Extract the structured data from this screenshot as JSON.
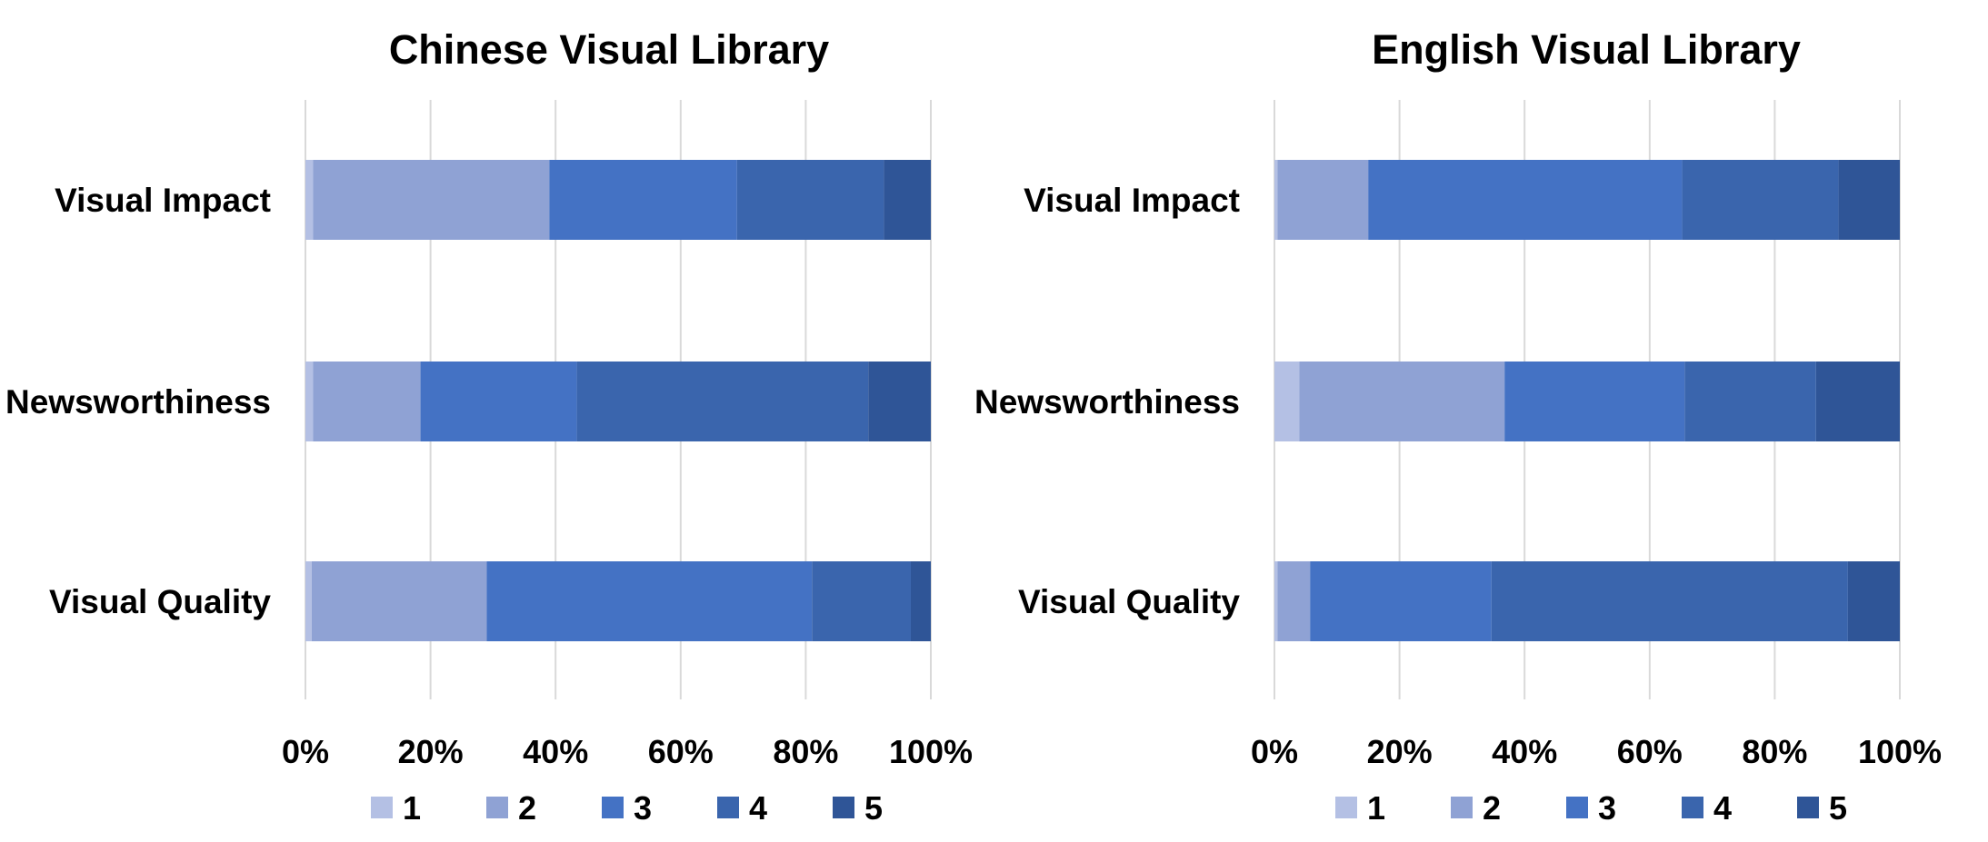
{
  "chart_data": [
    {
      "type": "bar",
      "orientation": "horizontal",
      "stacked": "percent",
      "title": "Chinese Visual Library",
      "categories": [
        "Visual Impact",
        "Newsworthiness",
        "Visual Quality"
      ],
      "x_ticks": [
        "0%",
        "20%",
        "40%",
        "60%",
        "80%",
        "100%"
      ],
      "xlim": [
        0,
        100
      ],
      "grid": "vertical",
      "legend_position": "bottom",
      "series": [
        {
          "name": "1",
          "color": "#b4c0e4",
          "values": [
            1.2,
            1.2,
            1.0
          ]
        },
        {
          "name": "2",
          "color": "#8fa2d4",
          "values": [
            37.8,
            17.2,
            28.0
          ]
        },
        {
          "name": "3",
          "color": "#4472c4",
          "values": [
            30.0,
            25.0,
            52.0
          ]
        },
        {
          "name": "4",
          "color": "#3a65ad",
          "values": [
            23.5,
            46.6,
            15.8
          ]
        },
        {
          "name": "5",
          "color": "#2f5597",
          "values": [
            7.5,
            10.0,
            3.2
          ]
        }
      ]
    },
    {
      "type": "bar",
      "orientation": "horizontal",
      "stacked": "percent",
      "title": "English Visual Library",
      "categories": [
        "Visual Impact",
        "Newsworthiness",
        "Visual Quality"
      ],
      "x_ticks": [
        "0%",
        "20%",
        "40%",
        "60%",
        "80%",
        "100%"
      ],
      "xlim": [
        0,
        100
      ],
      "grid": "vertical",
      "legend_position": "bottom",
      "series": [
        {
          "name": "1",
          "color": "#b4c0e4",
          "values": [
            0.5,
            4.0,
            0.5
          ]
        },
        {
          "name": "2",
          "color": "#8fa2d4",
          "values": [
            14.5,
            32.8,
            5.2
          ]
        },
        {
          "name": "3",
          "color": "#4472c4",
          "values": [
            50.2,
            28.8,
            29.0
          ]
        },
        {
          "name": "4",
          "color": "#3a65ad",
          "values": [
            25.0,
            21.0,
            57.0
          ]
        },
        {
          "name": "5",
          "color": "#2f5597",
          "values": [
            9.8,
            13.4,
            8.3
          ]
        }
      ]
    }
  ]
}
